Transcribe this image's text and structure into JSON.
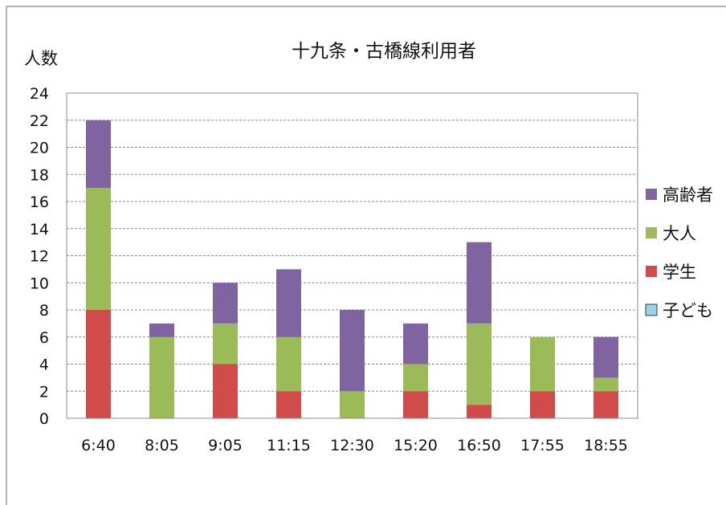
{
  "chart_data": {
    "type": "bar",
    "stacked": true,
    "title": "十九条・古橋線利用者",
    "ylabel": "人数",
    "xlabel": "",
    "ylim": [
      0,
      24
    ],
    "ytick_step": 2,
    "grid": true,
    "legend_position": "right",
    "categories": [
      "6:40",
      "8:05",
      "9:05",
      "11:15",
      "12:30",
      "15:20",
      "16:50",
      "17:55",
      "18:55"
    ],
    "series": [
      {
        "name": "子ども",
        "color": "#9ad2e6",
        "values": [
          0,
          0,
          0,
          0,
          0,
          0,
          0,
          0,
          0
        ]
      },
      {
        "name": "学生",
        "color": "#d14b4b",
        "values": [
          8,
          0,
          4,
          2,
          0,
          2,
          1,
          2,
          2
        ]
      },
      {
        "name": "大人",
        "color": "#9bbb59",
        "values": [
          9,
          6,
          3,
          4,
          2,
          2,
          6,
          4,
          1
        ]
      },
      {
        "name": "高齢者",
        "color": "#8064a2",
        "values": [
          5,
          1,
          3,
          5,
          6,
          3,
          6,
          0,
          3
        ]
      }
    ],
    "legend_order": [
      "高齢者",
      "大人",
      "学生",
      "子ども"
    ]
  }
}
